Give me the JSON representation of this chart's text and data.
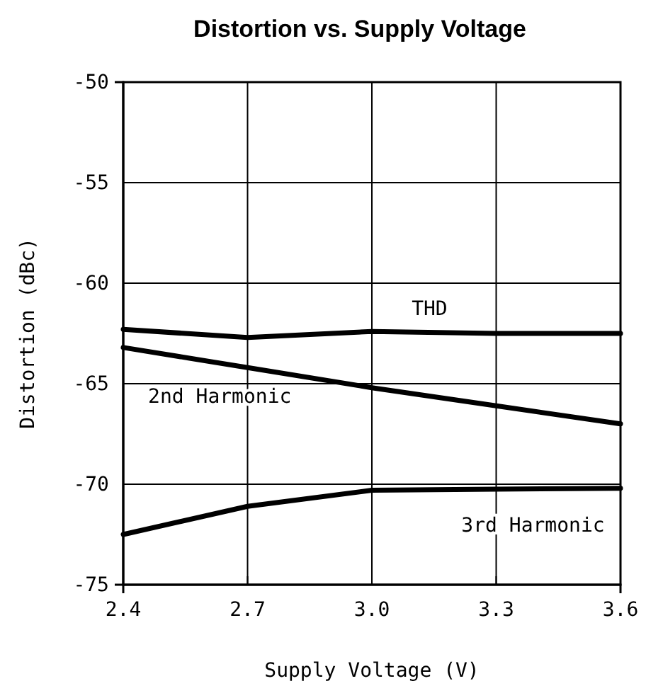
{
  "chart_data": {
    "type": "line",
    "title": "Distortion vs. Supply Voltage",
    "xlabel": "Supply Voltage (V)",
    "ylabel": "Distortion (dBc)",
    "x": [
      2.4,
      2.7,
      3.0,
      3.3,
      3.6
    ],
    "series": [
      {
        "name": "THD",
        "color": "#000000",
        "values": [
          -62.3,
          -62.7,
          -62.4,
          -62.5,
          -62.5
        ]
      },
      {
        "name": "2nd Harmonic",
        "color": "#000000",
        "values": [
          -63.2,
          -64.2,
          -65.2,
          -66.1,
          -67.0
        ]
      },
      {
        "name": "3rd Harmonic",
        "color": "#000000",
        "values": [
          -72.5,
          -71.1,
          -70.3,
          -70.25,
          -70.2
        ]
      }
    ],
    "xlim": [
      2.4,
      3.6
    ],
    "xticks": [
      {
        "value": 2.4,
        "label": "2.4"
      },
      {
        "value": 2.7,
        "label": "2.7"
      },
      {
        "value": 3.0,
        "label": "3.0"
      },
      {
        "value": 3.3,
        "label": "3.3"
      },
      {
        "value": 3.6,
        "label": "3.6"
      }
    ],
    "ylim": [
      -75,
      -50
    ],
    "yticks": [
      -75,
      -70,
      -65,
      -60,
      -55,
      -50
    ],
    "grid": true,
    "marker": "none",
    "line_style": "solid"
  }
}
